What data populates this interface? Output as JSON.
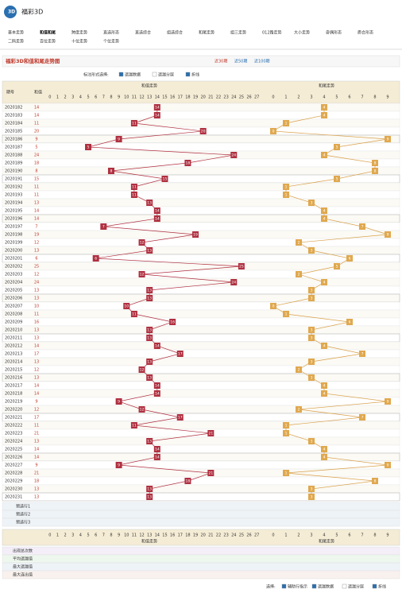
{
  "header": {
    "logo": "福彩3D",
    "nav": [
      "基本走势",
      "和值和尾",
      "跨度走势",
      "直选形态",
      "直选综合",
      "组选综合",
      "和尾走势",
      "组三走势",
      "012路走势",
      "大小走势",
      "奇偶形态",
      "质合形态",
      "二码走势",
      "百位走势",
      "十位走势",
      "个位走势"
    ]
  },
  "toolbar": {
    "title": "福彩3D和值和尾走势图",
    "filters": [
      "近30期",
      "近50期",
      "近100期"
    ],
    "option_label": "标注形式选择:",
    "options": [
      "遗漏数据",
      "遗漏分层",
      "折线"
    ]
  },
  "table": {
    "col_period": "期号",
    "col_sum": "和值",
    "sum_title": "和值走势",
    "tail_title": "和尾走势",
    "sum_axis": [
      0,
      1,
      2,
      3,
      4,
      5,
      6,
      7,
      8,
      9,
      10,
      11,
      12,
      13,
      14,
      15,
      16,
      17,
      18,
      19,
      20,
      21,
      22,
      23,
      24,
      25,
      26,
      27
    ],
    "tail_axis": [
      0,
      1,
      2,
      3,
      4,
      5,
      6,
      7,
      8,
      9
    ],
    "rows": [
      {
        "period": "2020182",
        "sum": 14,
        "tail": 4
      },
      {
        "period": "2020183",
        "sum": 14,
        "tail": 4
      },
      {
        "period": "2020184",
        "sum": 11,
        "tail": 1
      },
      {
        "period": "2020185",
        "sum": 20,
        "tail": 0
      },
      {
        "period": "2020186",
        "sum": 9,
        "tail": 9
      },
      {
        "period": "2020187",
        "sum": 5,
        "tail": 5
      },
      {
        "period": "2020188",
        "sum": 24,
        "tail": 4
      },
      {
        "period": "2020189",
        "sum": 18,
        "tail": 8
      },
      {
        "period": "2020190",
        "sum": 8,
        "tail": 8
      },
      {
        "period": "2020191",
        "sum": 15,
        "tail": 5
      },
      {
        "period": "2020192",
        "sum": 11,
        "tail": 1
      },
      {
        "period": "2020193",
        "sum": 11,
        "tail": 1
      },
      {
        "period": "2020194",
        "sum": 13,
        "tail": 3
      },
      {
        "period": "2020195",
        "sum": 14,
        "tail": 4
      },
      {
        "period": "2020196",
        "sum": 14,
        "tail": 4
      },
      {
        "period": "2020197",
        "sum": 7,
        "tail": 7
      },
      {
        "period": "2020198",
        "sum": 19,
        "tail": 9
      },
      {
        "period": "2020199",
        "sum": 12,
        "tail": 2
      },
      {
        "period": "2020200",
        "sum": 13,
        "tail": 3
      },
      {
        "period": "2020201",
        "sum": 6,
        "tail": 6
      },
      {
        "period": "2020202",
        "sum": 25,
        "tail": 5
      },
      {
        "period": "2020203",
        "sum": 12,
        "tail": 2
      },
      {
        "period": "2020204",
        "sum": 24,
        "tail": 4
      },
      {
        "period": "2020205",
        "sum": 13,
        "tail": 3
      },
      {
        "period": "2020206",
        "sum": 13,
        "tail": 3
      },
      {
        "period": "2020207",
        "sum": 10,
        "tail": 0
      },
      {
        "period": "2020208",
        "sum": 11,
        "tail": 1
      },
      {
        "period": "2020209",
        "sum": 16,
        "tail": 6
      },
      {
        "period": "2020210",
        "sum": 13,
        "tail": 3
      },
      {
        "period": "2020211",
        "sum": 13,
        "tail": 3
      },
      {
        "period": "2020212",
        "sum": 14,
        "tail": 4
      },
      {
        "period": "2020213",
        "sum": 17,
        "tail": 7
      },
      {
        "period": "2020214",
        "sum": 13,
        "tail": 3
      },
      {
        "period": "2020215",
        "sum": 12,
        "tail": 2
      },
      {
        "period": "2020216",
        "sum": 13,
        "tail": 3
      },
      {
        "period": "2020217",
        "sum": 14,
        "tail": 4
      },
      {
        "period": "2020218",
        "sum": 14,
        "tail": 4
      },
      {
        "period": "2020219",
        "sum": 9,
        "tail": 9
      },
      {
        "period": "2020220",
        "sum": 12,
        "tail": 2
      },
      {
        "period": "2020221",
        "sum": 17,
        "tail": 7
      },
      {
        "period": "2020222",
        "sum": 11,
        "tail": 1
      },
      {
        "period": "2020223",
        "sum": 21,
        "tail": 1
      },
      {
        "period": "2020224",
        "sum": 13,
        "tail": 3
      },
      {
        "period": "2020225",
        "sum": 14,
        "tail": 4
      },
      {
        "period": "2020226",
        "sum": 14,
        "tail": 4
      },
      {
        "period": "2020227",
        "sum": 9,
        "tail": 9
      },
      {
        "period": "2020228",
        "sum": 21,
        "tail": 1
      },
      {
        "period": "2020229",
        "sum": 18,
        "tail": 8
      },
      {
        "period": "2020230",
        "sum": 13,
        "tail": 3
      },
      {
        "period": "2020231",
        "sum": 13,
        "tail": 3
      }
    ],
    "predict_rows": [
      "预选行1",
      "预选行2",
      "预选行3"
    ],
    "stat_rows": [
      "出现总次数",
      "平均遗漏值",
      "最大遗漏值",
      "最大连出值"
    ]
  },
  "footer": {
    "label": "选择:",
    "options": [
      "辅助行指示",
      "遗漏数据",
      "遗漏分层",
      "折线"
    ]
  }
}
